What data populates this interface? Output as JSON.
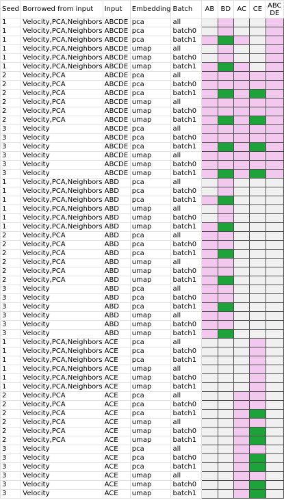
{
  "columns": {
    "seed": "Seed",
    "borrowed": "Borrowed from input",
    "input": "Input",
    "embedding": "Embedding",
    "batch": "Batch",
    "grid": [
      "AB",
      "BD",
      "AC",
      "CE",
      "ABC DE"
    ]
  },
  "legend_colors": {
    "empty": "#f0f0f0",
    "pink": "#f3c8ee",
    "green": "#1ea33b"
  },
  "rows": [
    {
      "seed": "1",
      "borrowed": "Velocity,PCA,Neighbors",
      "input": "ABCDE",
      "embedding": "pca",
      "batch": "all",
      "cells": [
        "e",
        "p",
        "e",
        "e",
        "p"
      ]
    },
    {
      "seed": "1",
      "borrowed": "Velocity,PCA,Neighbors",
      "input": "ABCDE",
      "embedding": "pca",
      "batch": "batch0",
      "cells": [
        "e",
        "p",
        "e",
        "e",
        "p"
      ]
    },
    {
      "seed": "1",
      "borrowed": "Velocity,PCA,Neighbors",
      "input": "ABCDE",
      "embedding": "pca",
      "batch": "batch1",
      "cells": [
        "p",
        "g",
        "p",
        "e",
        "p"
      ]
    },
    {
      "seed": "1",
      "borrowed": "Velocity,PCA,Neighbors",
      "input": "ABCDE",
      "embedding": "umap",
      "batch": "all",
      "cells": [
        "e",
        "p",
        "e",
        "e",
        "p"
      ]
    },
    {
      "seed": "1",
      "borrowed": "Velocity,PCA,Neighbors",
      "input": "ABCDE",
      "embedding": "umap",
      "batch": "batch0",
      "cells": [
        "e",
        "p",
        "e",
        "e",
        "p"
      ]
    },
    {
      "seed": "1",
      "borrowed": "Velocity,PCA,Neighbors",
      "input": "ABCDE",
      "embedding": "umap",
      "batch": "batch1",
      "cells": [
        "p",
        "g",
        "p",
        "e",
        "p"
      ]
    },
    {
      "seed": "2",
      "borrowed": "Velocity,PCA",
      "input": "ABCDE",
      "embedding": "pca",
      "batch": "all",
      "cells": [
        "p",
        "p",
        "p",
        "p",
        "p"
      ]
    },
    {
      "seed": "2",
      "borrowed": "Velocity,PCA",
      "input": "ABCDE",
      "embedding": "pca",
      "batch": "batch0",
      "cells": [
        "p",
        "p",
        "p",
        "p",
        "p"
      ]
    },
    {
      "seed": "2",
      "borrowed": "Velocity,PCA",
      "input": "ABCDE",
      "embedding": "pca",
      "batch": "batch1",
      "cells": [
        "p",
        "g",
        "p",
        "g",
        "p"
      ]
    },
    {
      "seed": "2",
      "borrowed": "Velocity,PCA",
      "input": "ABCDE",
      "embedding": "umap",
      "batch": "all",
      "cells": [
        "p",
        "p",
        "p",
        "p",
        "p"
      ]
    },
    {
      "seed": "2",
      "borrowed": "Velocity,PCA",
      "input": "ABCDE",
      "embedding": "umap",
      "batch": "batch0",
      "cells": [
        "p",
        "p",
        "p",
        "p",
        "p"
      ]
    },
    {
      "seed": "2",
      "borrowed": "Velocity,PCA",
      "input": "ABCDE",
      "embedding": "umap",
      "batch": "batch1",
      "cells": [
        "p",
        "g",
        "p",
        "g",
        "p"
      ]
    },
    {
      "seed": "3",
      "borrowed": "Velocity",
      "input": "ABCDE",
      "embedding": "pca",
      "batch": "all",
      "cells": [
        "p",
        "p",
        "p",
        "p",
        "p"
      ]
    },
    {
      "seed": "3",
      "borrowed": "Velocity",
      "input": "ABCDE",
      "embedding": "pca",
      "batch": "batch0",
      "cells": [
        "p",
        "p",
        "p",
        "p",
        "p"
      ]
    },
    {
      "seed": "3",
      "borrowed": "Velocity",
      "input": "ABCDE",
      "embedding": "pca",
      "batch": "batch1",
      "cells": [
        "p",
        "g",
        "p",
        "g",
        "p"
      ]
    },
    {
      "seed": "3",
      "borrowed": "Velocity",
      "input": "ABCDE",
      "embedding": "umap",
      "batch": "all",
      "cells": [
        "p",
        "p",
        "p",
        "p",
        "p"
      ]
    },
    {
      "seed": "3",
      "borrowed": "Velocity",
      "input": "ABCDE",
      "embedding": "umap",
      "batch": "batch0",
      "cells": [
        "p",
        "p",
        "p",
        "p",
        "p"
      ]
    },
    {
      "seed": "3",
      "borrowed": "Velocity",
      "input": "ABCDE",
      "embedding": "umap",
      "batch": "batch1",
      "cells": [
        "p",
        "g",
        "p",
        "g",
        "p"
      ]
    },
    {
      "seed": "1",
      "borrowed": "Velocity,PCA,Neighbors",
      "input": "ABD",
      "embedding": "pca",
      "batch": "all",
      "cells": [
        "e",
        "p",
        "e",
        "e",
        "e"
      ]
    },
    {
      "seed": "1",
      "borrowed": "Velocity,PCA,Neighbors",
      "input": "ABD",
      "embedding": "pca",
      "batch": "batch0",
      "cells": [
        "e",
        "p",
        "e",
        "e",
        "e"
      ]
    },
    {
      "seed": "1",
      "borrowed": "Velocity,PCA,Neighbors",
      "input": "ABD",
      "embedding": "pca",
      "batch": "batch1",
      "cells": [
        "p",
        "g",
        "e",
        "e",
        "e"
      ]
    },
    {
      "seed": "1",
      "borrowed": "Velocity,PCA,Neighbors",
      "input": "ABD",
      "embedding": "umap",
      "batch": "all",
      "cells": [
        "e",
        "p",
        "e",
        "e",
        "e"
      ]
    },
    {
      "seed": "1",
      "borrowed": "Velocity,PCA,Neighbors",
      "input": "ABD",
      "embedding": "umap",
      "batch": "batch0",
      "cells": [
        "e",
        "p",
        "e",
        "e",
        "e"
      ]
    },
    {
      "seed": "1",
      "borrowed": "Velocity,PCA,Neighbors",
      "input": "ABD",
      "embedding": "umap",
      "batch": "batch1",
      "cells": [
        "p",
        "g",
        "e",
        "e",
        "e"
      ]
    },
    {
      "seed": "2",
      "borrowed": "Velocity,PCA",
      "input": "ABD",
      "embedding": "pca",
      "batch": "all",
      "cells": [
        "p",
        "p",
        "e",
        "e",
        "e"
      ]
    },
    {
      "seed": "2",
      "borrowed": "Velocity,PCA",
      "input": "ABD",
      "embedding": "pca",
      "batch": "batch0",
      "cells": [
        "p",
        "p",
        "e",
        "e",
        "e"
      ]
    },
    {
      "seed": "2",
      "borrowed": "Velocity,PCA",
      "input": "ABD",
      "embedding": "pca",
      "batch": "batch1",
      "cells": [
        "p",
        "g",
        "e",
        "e",
        "e"
      ]
    },
    {
      "seed": "2",
      "borrowed": "Velocity,PCA",
      "input": "ABD",
      "embedding": "umap",
      "batch": "all",
      "cells": [
        "p",
        "p",
        "e",
        "e",
        "e"
      ]
    },
    {
      "seed": "2",
      "borrowed": "Velocity,PCA",
      "input": "ABD",
      "embedding": "umap",
      "batch": "batch0",
      "cells": [
        "p",
        "p",
        "e",
        "e",
        "e"
      ]
    },
    {
      "seed": "2",
      "borrowed": "Velocity,PCA",
      "input": "ABD",
      "embedding": "umap",
      "batch": "batch1",
      "cells": [
        "p",
        "g",
        "e",
        "e",
        "e"
      ]
    },
    {
      "seed": "3",
      "borrowed": "Velocity",
      "input": "ABD",
      "embedding": "pca",
      "batch": "all",
      "cells": [
        "p",
        "p",
        "e",
        "e",
        "e"
      ]
    },
    {
      "seed": "3",
      "borrowed": "Velocity",
      "input": "ABD",
      "embedding": "pca",
      "batch": "batch0",
      "cells": [
        "p",
        "p",
        "e",
        "e",
        "e"
      ]
    },
    {
      "seed": "3",
      "borrowed": "Velocity",
      "input": "ABD",
      "embedding": "pca",
      "batch": "batch1",
      "cells": [
        "p",
        "g",
        "e",
        "e",
        "e"
      ]
    },
    {
      "seed": "3",
      "borrowed": "Velocity",
      "input": "ABD",
      "embedding": "umap",
      "batch": "all",
      "cells": [
        "p",
        "p",
        "e",
        "e",
        "e"
      ]
    },
    {
      "seed": "3",
      "borrowed": "Velocity",
      "input": "ABD",
      "embedding": "umap",
      "batch": "batch0",
      "cells": [
        "p",
        "p",
        "e",
        "e",
        "e"
      ]
    },
    {
      "seed": "3",
      "borrowed": "Velocity",
      "input": "ABD",
      "embedding": "umap",
      "batch": "batch1",
      "cells": [
        "p",
        "g",
        "e",
        "e",
        "e"
      ]
    },
    {
      "seed": "1",
      "borrowed": "Velocity,PCA,Neighbors",
      "input": "ACE",
      "embedding": "pca",
      "batch": "all",
      "cells": [
        "e",
        "e",
        "e",
        "p",
        "e"
      ]
    },
    {
      "seed": "1",
      "borrowed": "Velocity,PCA,Neighbors",
      "input": "ACE",
      "embedding": "pca",
      "batch": "batch0",
      "cells": [
        "e",
        "e",
        "e",
        "p",
        "e"
      ]
    },
    {
      "seed": "1",
      "borrowed": "Velocity,PCA,Neighbors",
      "input": "ACE",
      "embedding": "pca",
      "batch": "batch1",
      "cells": [
        "e",
        "e",
        "e",
        "p",
        "e"
      ]
    },
    {
      "seed": "1",
      "borrowed": "Velocity,PCA,Neighbors",
      "input": "ACE",
      "embedding": "umap",
      "batch": "all",
      "cells": [
        "e",
        "e",
        "e",
        "p",
        "e"
      ]
    },
    {
      "seed": "1",
      "borrowed": "Velocity,PCA,Neighbors",
      "input": "ACE",
      "embedding": "umap",
      "batch": "batch0",
      "cells": [
        "e",
        "e",
        "e",
        "p",
        "e"
      ]
    },
    {
      "seed": "1",
      "borrowed": "Velocity,PCA,Neighbors",
      "input": "ACE",
      "embedding": "umap",
      "batch": "batch1",
      "cells": [
        "e",
        "e",
        "e",
        "p",
        "e"
      ]
    },
    {
      "seed": "2",
      "borrowed": "Velocity,PCA",
      "input": "ACE",
      "embedding": "pca",
      "batch": "all",
      "cells": [
        "e",
        "e",
        "p",
        "p",
        "e"
      ]
    },
    {
      "seed": "2",
      "borrowed": "Velocity,PCA",
      "input": "ACE",
      "embedding": "pca",
      "batch": "batch0",
      "cells": [
        "e",
        "e",
        "p",
        "p",
        "e"
      ]
    },
    {
      "seed": "2",
      "borrowed": "Velocity,PCA",
      "input": "ACE",
      "embedding": "pca",
      "batch": "batch1",
      "cells": [
        "e",
        "e",
        "p",
        "g",
        "e"
      ]
    },
    {
      "seed": "2",
      "borrowed": "Velocity,PCA",
      "input": "ACE",
      "embedding": "umap",
      "batch": "all",
      "cells": [
        "e",
        "e",
        "p",
        "p",
        "e"
      ]
    },
    {
      "seed": "2",
      "borrowed": "Velocity,PCA",
      "input": "ACE",
      "embedding": "umap",
      "batch": "batch0",
      "cells": [
        "e",
        "e",
        "p",
        "g",
        "e"
      ]
    },
    {
      "seed": "2",
      "borrowed": "Velocity,PCA",
      "input": "ACE",
      "embedding": "umap",
      "batch": "batch1",
      "cells": [
        "e",
        "e",
        "p",
        "g",
        "e"
      ]
    },
    {
      "seed": "3",
      "borrowed": "Velocity",
      "input": "ACE",
      "embedding": "pca",
      "batch": "all",
      "cells": [
        "e",
        "e",
        "p",
        "p",
        "e"
      ]
    },
    {
      "seed": "3",
      "borrowed": "Velocity",
      "input": "ACE",
      "embedding": "pca",
      "batch": "batch0",
      "cells": [
        "e",
        "e",
        "p",
        "g",
        "e"
      ]
    },
    {
      "seed": "3",
      "borrowed": "Velocity",
      "input": "ACE",
      "embedding": "pca",
      "batch": "batch1",
      "cells": [
        "e",
        "e",
        "p",
        "g",
        "e"
      ]
    },
    {
      "seed": "3",
      "borrowed": "Velocity",
      "input": "ACE",
      "embedding": "umap",
      "batch": "all",
      "cells": [
        "e",
        "e",
        "p",
        "p",
        "e"
      ]
    },
    {
      "seed": "3",
      "borrowed": "Velocity",
      "input": "ACE",
      "embedding": "umap",
      "batch": "batch0",
      "cells": [
        "e",
        "e",
        "p",
        "g",
        "e"
      ]
    },
    {
      "seed": "3",
      "borrowed": "Velocity",
      "input": "ACE",
      "embedding": "umap",
      "batch": "batch1",
      "cells": [
        "e",
        "e",
        "p",
        "g",
        "e"
      ]
    }
  ]
}
